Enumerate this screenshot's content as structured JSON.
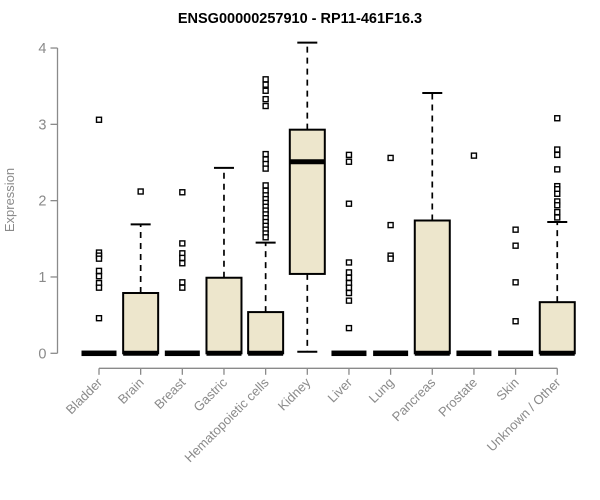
{
  "chart_data": {
    "type": "boxplot",
    "title": "ENSG00000257910 - RP11-461F16.3",
    "ylabel": "Expression",
    "xlabel": "",
    "ylim": [
      0,
      4
    ],
    "yticks": [
      0,
      1,
      2,
      3,
      4
    ],
    "grid": false,
    "legend": "none",
    "categories": [
      "Bladder",
      "Brain",
      "Breast",
      "Gastric",
      "Hematopoietic cells",
      "Kidney",
      "Liver",
      "Lung",
      "Pancreas",
      "Prostate",
      "Skin",
      "Unknown / Other"
    ],
    "series": [
      {
        "category": "Bladder",
        "whisker_low": 0,
        "q1": 0,
        "median": 0,
        "q3": 0,
        "whisker_high": 0,
        "outliers": [
          3.06,
          1.32,
          1.28,
          1.24,
          1.08,
          1.01,
          0.92,
          0.86,
          0.46
        ]
      },
      {
        "category": "Brain",
        "whisker_low": 0,
        "q1": 0,
        "median": 0,
        "q3": 0.79,
        "whisker_high": 1.69,
        "outliers": [
          2.12
        ]
      },
      {
        "category": "Breast",
        "whisker_low": 0,
        "q1": 0,
        "median": 0,
        "q3": 0,
        "whisker_high": 0,
        "outliers": [
          2.11,
          1.44,
          1.31,
          1.25,
          1.18,
          0.93,
          0.86
        ]
      },
      {
        "category": "Gastric",
        "whisker_low": 0,
        "q1": 0,
        "median": 0,
        "q3": 0.99,
        "whisker_high": 2.43,
        "outliers": []
      },
      {
        "category": "Hematopoietic cells",
        "whisker_low": 0,
        "q1": 0,
        "median": 0,
        "q3": 0.54,
        "whisker_high": 1.45,
        "outliers": [
          3.59,
          3.52,
          3.44,
          3.33,
          3.24,
          2.61,
          2.54,
          2.48,
          2.42,
          2.2,
          2.13,
          2.07,
          2.02,
          1.97,
          1.92,
          1.87,
          1.82,
          1.77,
          1.72,
          1.67,
          1.62,
          1.57,
          1.52
        ]
      },
      {
        "category": "Kidney",
        "whisker_low": 0.02,
        "q1": 1.04,
        "median": 2.51,
        "q3": 2.93,
        "whisker_high": 4.07,
        "outliers": []
      },
      {
        "category": "Liver",
        "whisker_low": 0,
        "q1": 0,
        "median": 0,
        "q3": 0,
        "whisker_high": 0,
        "outliers": [
          2.6,
          2.51,
          1.96,
          1.19,
          1.06,
          0.99,
          0.92,
          0.86,
          0.79,
          0.69,
          0.33
        ]
      },
      {
        "category": "Lung",
        "whisker_low": 0,
        "q1": 0,
        "median": 0,
        "q3": 0,
        "whisker_high": 0,
        "outliers": [
          2.56,
          1.68,
          1.28,
          1.24
        ]
      },
      {
        "category": "Pancreas",
        "whisker_low": 0,
        "q1": 0,
        "median": 0,
        "q3": 1.74,
        "whisker_high": 3.41,
        "outliers": []
      },
      {
        "category": "Prostate",
        "whisker_low": 0,
        "q1": 0,
        "median": 0,
        "q3": 0,
        "whisker_high": 0,
        "outliers": [
          2.59
        ]
      },
      {
        "category": "Skin",
        "whisker_low": 0,
        "q1": 0,
        "median": 0,
        "q3": 0,
        "whisker_high": 0,
        "outliers": [
          1.62,
          1.41,
          0.93,
          0.42
        ]
      },
      {
        "category": "Unknown / Other",
        "whisker_low": 0,
        "q1": 0,
        "median": 0,
        "q3": 0.67,
        "whisker_high": 1.72,
        "outliers": [
          3.08,
          2.67,
          2.6,
          2.41,
          2.19,
          2.15,
          2.09,
          1.99,
          1.94,
          1.85,
          1.78
        ]
      }
    ],
    "colors": {
      "box_fill": "#ede6cc",
      "box_stroke": "#000000",
      "median": "#000000",
      "whisker": "#000000",
      "outlier_stroke": "#000000",
      "outlier_fill": "#ffffff",
      "axis": "#8a8a8a",
      "tick_label": "#8a8a8a",
      "title": "#000000",
      "background": "#ffffff"
    }
  }
}
